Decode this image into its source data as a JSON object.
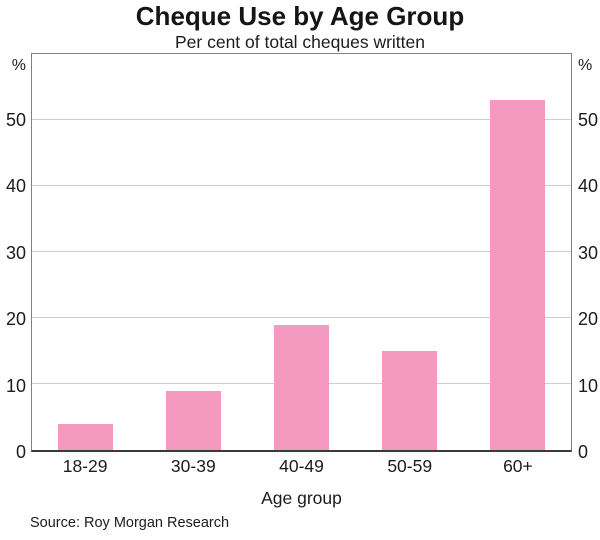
{
  "page": {
    "title": "Cheque Use by Age Group",
    "subtitle": "Per cent of total cheques written",
    "source": "Source: Roy Morgan Research",
    "xlabel": "Age group",
    "unit_left": "%",
    "unit_right": "%"
  },
  "chart_data": {
    "type": "bar",
    "title": "Cheque Use by Age Group",
    "subtitle": "Per cent of total cheques written",
    "categories": [
      "18-29",
      "30-39",
      "40-49",
      "50-59",
      "60+"
    ],
    "values": [
      4,
      9,
      19,
      15,
      53
    ],
    "xlabel": "Age group",
    "ylabel": "%",
    "yticks": [
      0,
      10,
      20,
      30,
      40,
      50
    ],
    "ylim": [
      0,
      60
    ],
    "grid": true,
    "legend": "none",
    "bar_color": "#F49AC1",
    "axis_color": "#808080",
    "baseline_color": "#3a3a3a",
    "gridline_color": "#cdcdcd",
    "source": "Source: Roy Morgan Research"
  }
}
